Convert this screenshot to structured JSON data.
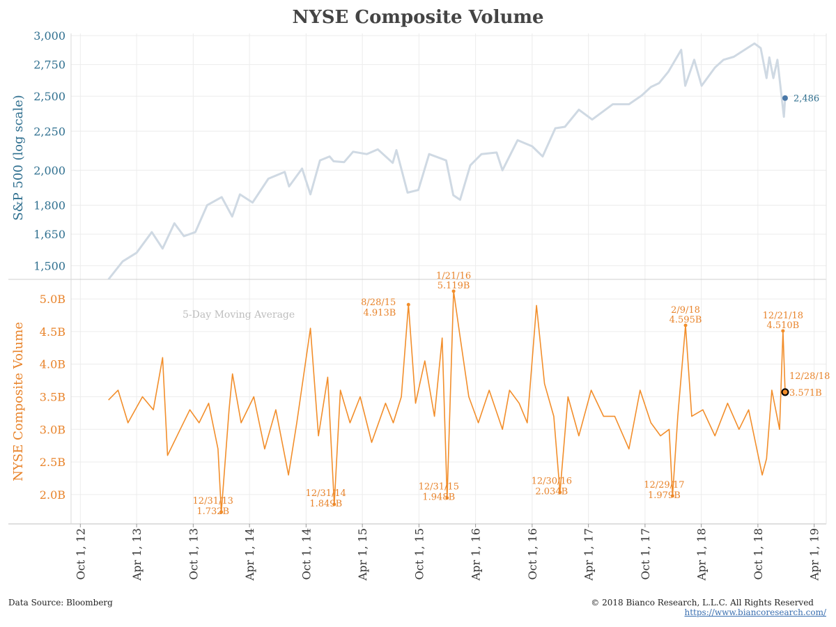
{
  "title": "NYSE Composite Volume",
  "footer": {
    "source": "Data Source: Bloomberg",
    "copyright": "© 2018 Bianco Research, L.L.C. All Rights Reserved",
    "url": "https://www.biancoresearch.com/"
  },
  "colors": {
    "spx_line": "#cfd9e3",
    "spx_axis": "#2f6f8f",
    "spx_point": "#4a78a8",
    "volume_line": "#f28e2b",
    "volume_axis": "#e8832a",
    "ma_label": "#bdbdbd",
    "grid": "#ececec"
  },
  "chart_data": [
    {
      "type": "line",
      "ylabel": "S&P 500 (log scale)",
      "yscale": "log",
      "ylim": [
        1440,
        3020
      ],
      "yticks": [
        1500,
        1650,
        1800,
        2000,
        2250,
        2500,
        2750,
        3000
      ],
      "ytick_labels": [
        "1,500",
        "1,650",
        "1,800",
        "2,000",
        "2,250",
        "2,500",
        "2,750",
        "3,000"
      ],
      "series": [
        {
          "x": [
            "2012-12-31",
            "2013-02-15",
            "2013-04-01",
            "2013-05-20",
            "2013-06-24",
            "2013-08-01",
            "2013-09-01",
            "2013-10-08",
            "2013-11-15",
            "2014-01-01",
            "2014-02-04",
            "2014-03-01",
            "2014-04-11",
            "2014-06-01",
            "2014-07-24",
            "2014-08-07",
            "2014-09-18",
            "2014-10-15",
            "2014-11-15",
            "2014-12-16",
            "2014-12-29",
            "2015-02-01",
            "2015-03-02",
            "2015-04-15",
            "2015-05-21",
            "2015-07-08",
            "2015-07-20",
            "2015-08-25",
            "2015-09-29",
            "2015-11-03",
            "2015-12-28",
            "2016-01-20",
            "2016-02-11",
            "2016-03-15",
            "2016-04-20",
            "2016-06-08",
            "2016-06-27",
            "2016-08-15",
            "2016-10-01",
            "2016-11-04",
            "2016-12-15",
            "2017-01-15",
            "2017-03-01",
            "2017-04-13",
            "2017-06-19",
            "2017-08-10",
            "2017-09-20",
            "2017-10-20",
            "2017-11-15",
            "2017-12-15",
            "2018-01-26",
            "2018-02-08",
            "2018-03-09",
            "2018-04-02",
            "2018-05-15",
            "2018-06-12",
            "2018-07-15",
            "2018-09-20",
            "2018-10-10",
            "2018-10-29",
            "2018-11-07",
            "2018-11-20",
            "2018-12-03",
            "2018-12-24",
            "2018-12-28"
          ],
          "y": [
            1440,
            1520,
            1560,
            1660,
            1580,
            1705,
            1640,
            1660,
            1800,
            1845,
            1740,
            1860,
            1815,
            1950,
            1990,
            1905,
            2010,
            1860,
            2060,
            2085,
            2055,
            2050,
            2115,
            2100,
            2130,
            2045,
            2125,
            1870,
            1885,
            2100,
            2060,
            1855,
            1830,
            2030,
            2100,
            2110,
            2000,
            2190,
            2150,
            2085,
            2270,
            2280,
            2400,
            2330,
            2440,
            2440,
            2505,
            2570,
            2600,
            2690,
            2875,
            2580,
            2790,
            2580,
            2725,
            2790,
            2815,
            2930,
            2890,
            2640,
            2810,
            2640,
            2790,
            2350,
            2486
          ]
        }
      ],
      "end_label": {
        "date": "2018-12-28",
        "value": 2486,
        "label": "2,486"
      }
    },
    {
      "type": "line",
      "ylabel": "NYSE Composite Volume",
      "annotation": "5-Day Moving Average",
      "ylim": [
        1.55,
        5.3
      ],
      "yticks": [
        2.0,
        2.5,
        3.0,
        3.5,
        4.0,
        4.5,
        5.0
      ],
      "ytick_labels": [
        "2.0B",
        "2.5B",
        "3.0B",
        "3.5B",
        "4.0B",
        "4.5B",
        "5.0B"
      ],
      "series": [
        {
          "x": [
            "2012-12-31",
            "2013-01-31",
            "2013-03-04",
            "2013-04-20",
            "2013-05-25",
            "2013-06-24",
            "2013-07-10",
            "2013-08-20",
            "2013-09-20",
            "2013-10-20",
            "2013-11-20",
            "2013-12-20",
            "2013-12-31",
            "2014-01-25",
            "2014-02-05",
            "2014-03-05",
            "2014-04-15",
            "2014-05-20",
            "2014-06-25",
            "2014-08-05",
            "2014-09-01",
            "2014-10-15",
            "2014-11-10",
            "2014-12-10",
            "2014-12-31",
            "2015-01-20",
            "2015-02-20",
            "2015-03-25",
            "2015-05-01",
            "2015-06-15",
            "2015-07-10",
            "2015-08-05",
            "2015-08-28",
            "2015-09-20",
            "2015-10-20",
            "2015-11-20",
            "2015-12-15",
            "2015-12-31",
            "2016-01-21",
            "2016-02-10",
            "2016-03-10",
            "2016-04-10",
            "2016-05-15",
            "2016-06-27",
            "2016-07-20",
            "2016-08-20",
            "2016-09-15",
            "2016-10-15",
            "2016-11-10",
            "2016-12-10",
            "2016-12-30",
            "2017-01-25",
            "2017-03-01",
            "2017-04-10",
            "2017-05-20",
            "2017-06-25",
            "2017-08-10",
            "2017-09-15",
            "2017-10-20",
            "2017-11-20",
            "2017-12-18",
            "2017-12-29",
            "2018-01-15",
            "2018-02-09",
            "2018-03-01",
            "2018-04-06",
            "2018-05-15",
            "2018-06-25",
            "2018-08-01",
            "2018-09-01",
            "2018-10-15",
            "2018-10-29",
            "2018-11-15",
            "2018-12-10",
            "2018-12-21",
            "2018-12-28"
          ],
          "y": [
            3.45,
            3.6,
            3.1,
            3.5,
            3.3,
            4.1,
            2.6,
            3.0,
            3.3,
            3.1,
            3.4,
            2.7,
            1.732,
            3.3,
            3.85,
            3.1,
            3.5,
            2.7,
            3.3,
            2.3,
            3.1,
            4.55,
            2.9,
            3.8,
            1.849,
            3.6,
            3.1,
            3.5,
            2.8,
            3.4,
            3.1,
            3.5,
            4.913,
            3.4,
            4.05,
            3.2,
            4.4,
            1.948,
            5.119,
            4.45,
            3.5,
            3.1,
            3.6,
            3.0,
            3.6,
            3.4,
            3.1,
            4.9,
            3.7,
            3.2,
            2.034,
            3.5,
            2.9,
            3.6,
            3.2,
            3.2,
            2.7,
            3.6,
            3.1,
            2.9,
            3.0,
            1.979,
            3.2,
            4.595,
            3.2,
            3.3,
            2.9,
            3.4,
            3.0,
            3.3,
            2.3,
            2.55,
            3.6,
            3.0,
            4.51,
            3.571
          ]
        }
      ],
      "annotations": [
        {
          "date": "2013-12-31",
          "value": 1.732,
          "label1": "12/31/13",
          "label2": "1.732B",
          "pos": "below"
        },
        {
          "date": "2014-12-31",
          "value": 1.849,
          "label1": "12/31/14",
          "label2": "1.849B",
          "pos": "below"
        },
        {
          "date": "2015-08-28",
          "value": 4.913,
          "label1": "8/28/15",
          "label2": "4.913B",
          "pos": "left"
        },
        {
          "date": "2015-12-31",
          "value": 1.948,
          "label1": "12/31/15",
          "label2": "1.948B",
          "pos": "below"
        },
        {
          "date": "2016-01-21",
          "value": 5.119,
          "label1": "1/21/16",
          "label2": "5.119B",
          "pos": "above"
        },
        {
          "date": "2016-12-30",
          "value": 2.034,
          "label1": "12/30/16",
          "label2": "2.034B",
          "pos": "below"
        },
        {
          "date": "2017-12-29",
          "value": 1.979,
          "label1": "12/29/17",
          "label2": "1.979B",
          "pos": "below"
        },
        {
          "date": "2018-02-09",
          "value": 4.595,
          "label1": "2/9/18",
          "label2": "4.595B",
          "pos": "above"
        },
        {
          "date": "2018-12-21",
          "value": 4.51,
          "label1": "12/21/18",
          "label2": "4.510B",
          "pos": "above"
        },
        {
          "date": "2018-12-28",
          "value": 3.571,
          "label1": "12/28/18",
          "label2": "3.571B",
          "pos": "right"
        }
      ],
      "marker": {
        "date": "2018-12-28",
        "value": 3.571
      }
    }
  ],
  "x_axis": {
    "ticks": [
      "2012-10-01",
      "2013-04-01",
      "2013-10-01",
      "2014-04-01",
      "2014-10-01",
      "2015-04-01",
      "2015-10-01",
      "2016-04-01",
      "2016-10-01",
      "2017-04-01",
      "2017-10-01",
      "2018-04-01",
      "2018-10-01",
      "2019-04-01"
    ],
    "tick_labels": [
      "Oct 1, 12",
      "Apr 1, 13",
      "Oct 1, 13",
      "Apr 1, 14",
      "Oct 1, 14",
      "Apr 1, 15",
      "Oct 1, 15",
      "Apr 1, 16",
      "Oct 1, 16",
      "Apr 1, 17",
      "Oct 1, 17",
      "Apr 1, 18",
      "Oct 1, 18",
      "Apr 1, 19"
    ],
    "range": [
      "2012-09-01",
      "2019-05-10"
    ]
  }
}
